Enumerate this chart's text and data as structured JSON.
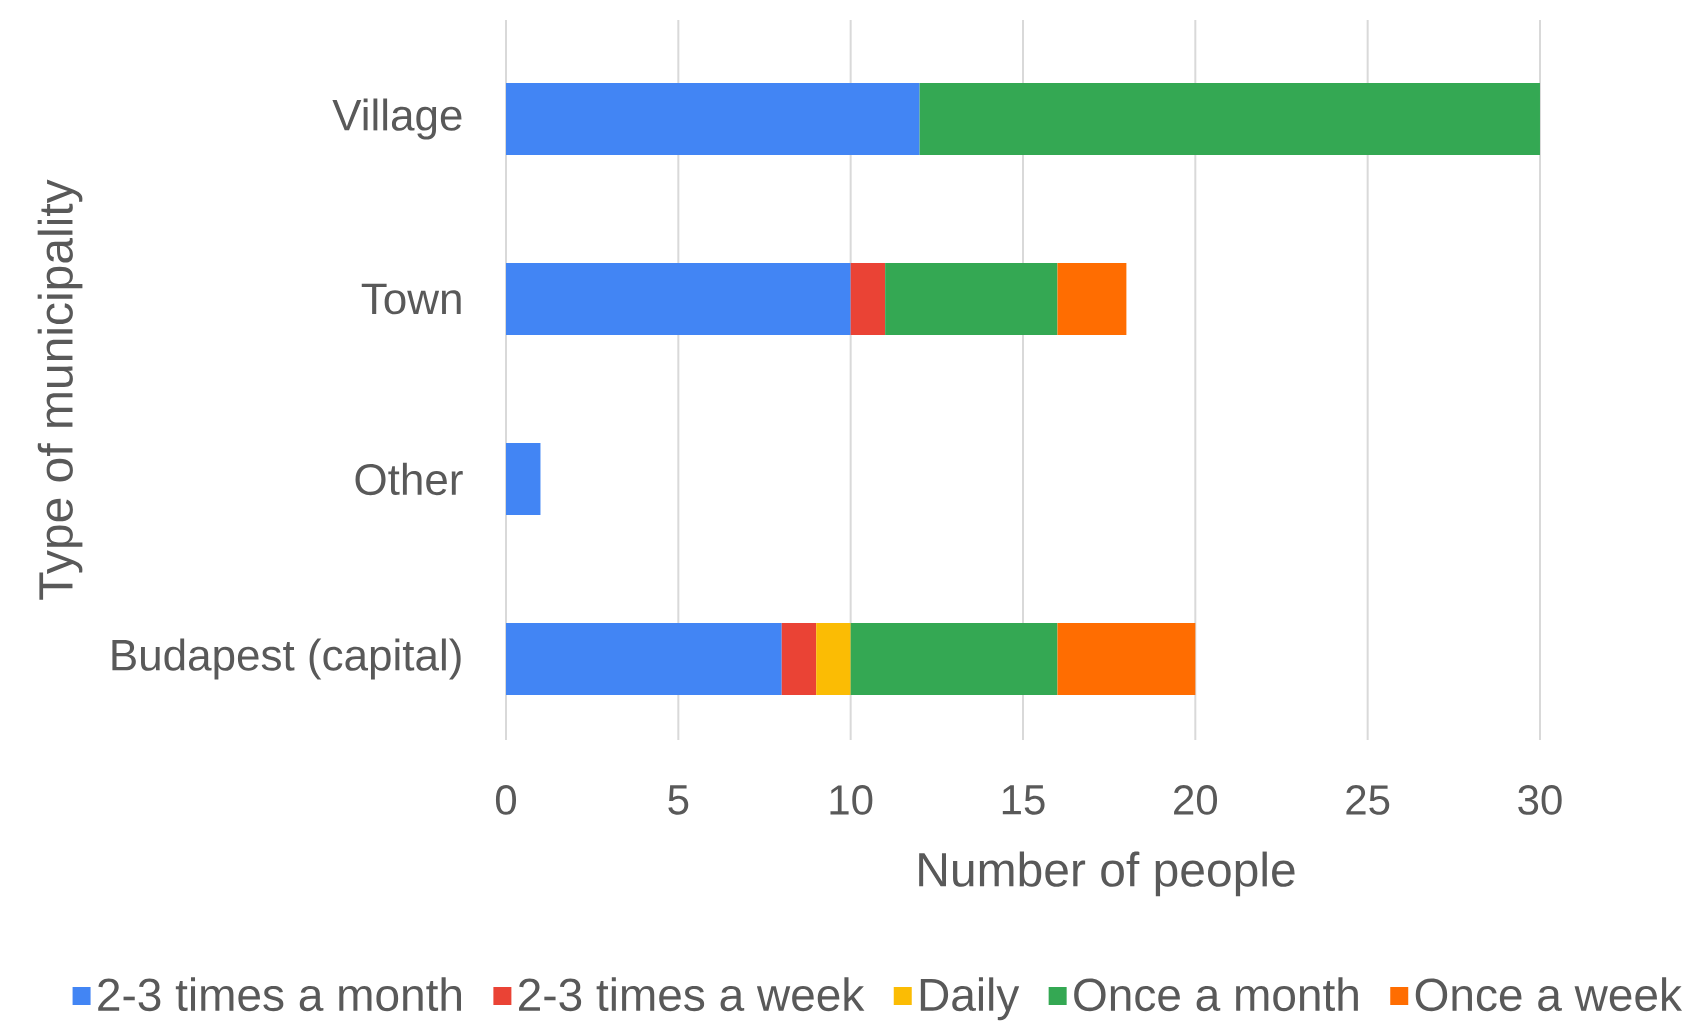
{
  "chart_data": {
    "type": "bar",
    "orientation": "horizontal",
    "stacked": true,
    "xlabel": "Number of people",
    "ylabel": "Type of municipality",
    "categories": [
      "Village",
      "Town",
      "Other",
      "Budapest (capital)"
    ],
    "series": [
      {
        "name": "2-3 times a month",
        "color": "#4285f4",
        "values": [
          12,
          10,
          1,
          8
        ]
      },
      {
        "name": "2-3 times a week",
        "color": "#ea4335",
        "values": [
          null,
          1,
          null,
          1
        ]
      },
      {
        "name": "Daily",
        "color": "#fbbc04",
        "values": [
          null,
          null,
          null,
          1
        ]
      },
      {
        "name": "Once a month",
        "color": "#34a853",
        "values": [
          18,
          5,
          null,
          6
        ]
      },
      {
        "name": "Once a week",
        "color": "#ff6d01",
        "values": [
          null,
          2,
          null,
          4
        ]
      }
    ],
    "xlim": [
      0,
      30
    ],
    "xticks": [
      0,
      5,
      10,
      15,
      20,
      25,
      30
    ],
    "grid": "x",
    "legend": "bottom"
  }
}
